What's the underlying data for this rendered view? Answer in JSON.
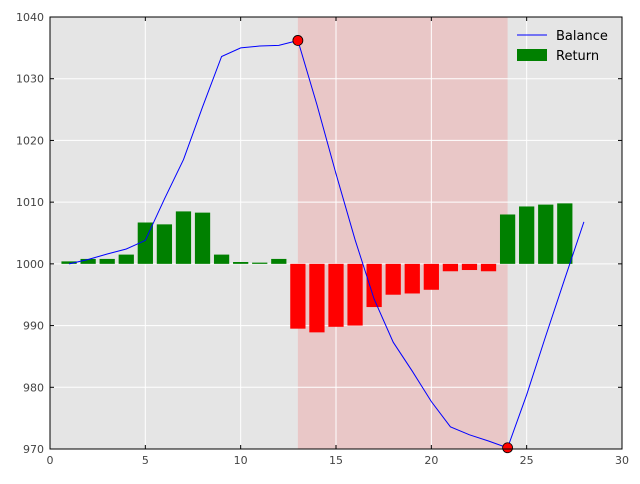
{
  "chart_data": {
    "type": "bar+line",
    "title": "",
    "xlabel": "",
    "ylabel": "",
    "xlim": [
      0,
      30
    ],
    "ylim": [
      970,
      1040
    ],
    "x_ticks": [
      0,
      5,
      10,
      15,
      20,
      25,
      30
    ],
    "y_ticks": [
      970,
      980,
      990,
      1000,
      1010,
      1020,
      1030,
      1040
    ],
    "grid": true,
    "legend_position": "top-right",
    "baseline": 1000,
    "shaded_region": {
      "x_start": 13,
      "x_end": 24,
      "color": "#e9c7c7"
    },
    "series": [
      {
        "name": "Balance",
        "type": "line",
        "color": "#0000ff",
        "x": [
          1,
          2,
          3,
          4,
          5,
          6,
          7,
          8,
          9,
          10,
          11,
          12,
          13,
          14,
          15,
          16,
          17,
          18,
          19,
          20,
          21,
          22,
          23,
          24,
          25,
          26,
          27,
          28
        ],
        "y": [
          1000.0,
          1000.7,
          1001.6,
          1002.4,
          1003.8,
          1010.5,
          1016.9,
          1025.4,
          1033.6,
          1035.0,
          1035.3,
          1035.4,
          1036.2,
          1025.8,
          1014.6,
          1003.9,
          994.3,
          987.3,
          982.6,
          977.7,
          973.6,
          972.3,
          971.3,
          970.2,
          978.8,
          988.3,
          997.6,
          1006.8
        ]
      },
      {
        "name": "Return",
        "type": "bar",
        "x": [
          1,
          2,
          3,
          4,
          5,
          6,
          7,
          8,
          9,
          10,
          11,
          12,
          13,
          14,
          15,
          16,
          17,
          18,
          19,
          20,
          21,
          22,
          23,
          24,
          25,
          26,
          27,
          28
        ],
        "values": [
          0.4,
          0.8,
          0.8,
          1.5,
          6.7,
          6.4,
          8.5,
          8.3,
          1.5,
          0.3,
          0.2,
          0.8,
          -10.5,
          -11.1,
          -10.2,
          -10.0,
          -7.0,
          -5.0,
          -4.8,
          -4.2,
          -1.2,
          -1.0,
          -1.2,
          8.0,
          9.3,
          9.6,
          9.8,
          null
        ],
        "positive_color": "#008000",
        "negative_color": "#ff0000"
      }
    ],
    "markers": [
      {
        "x": 13,
        "y": 1036.2,
        "color": "#ff0000"
      },
      {
        "x": 24,
        "y": 970.2,
        "color": "#ff0000"
      }
    ]
  },
  "legend": {
    "balance_label": "Balance",
    "return_label": "Return"
  }
}
